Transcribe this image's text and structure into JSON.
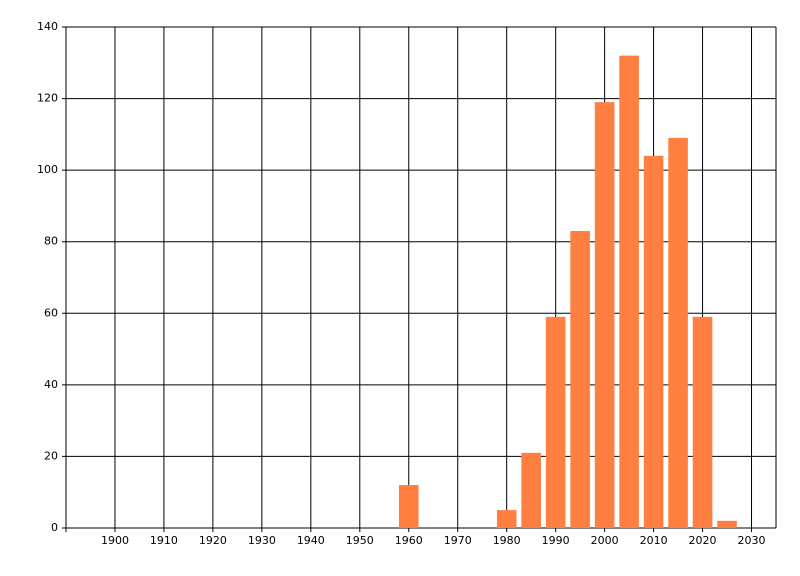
{
  "chart_data": {
    "type": "bar",
    "x": [
      1960,
      1980,
      1985,
      1990,
      1995,
      2000,
      2005,
      2010,
      2015,
      2020,
      2025
    ],
    "values": [
      12,
      5,
      21,
      59,
      83,
      119,
      132,
      104,
      109,
      59,
      2
    ],
    "color": "#ff7f40",
    "xlim": [
      1890,
      2035
    ],
    "xticks": [
      1900,
      1910,
      1920,
      1930,
      1940,
      1950,
      1960,
      1970,
      1980,
      1990,
      2000,
      2010,
      2020,
      2030
    ],
    "ylim": [
      0,
      140
    ],
    "yticks": [
      0,
      20,
      40,
      60,
      80,
      100,
      120,
      140
    ],
    "grid": true
  }
}
